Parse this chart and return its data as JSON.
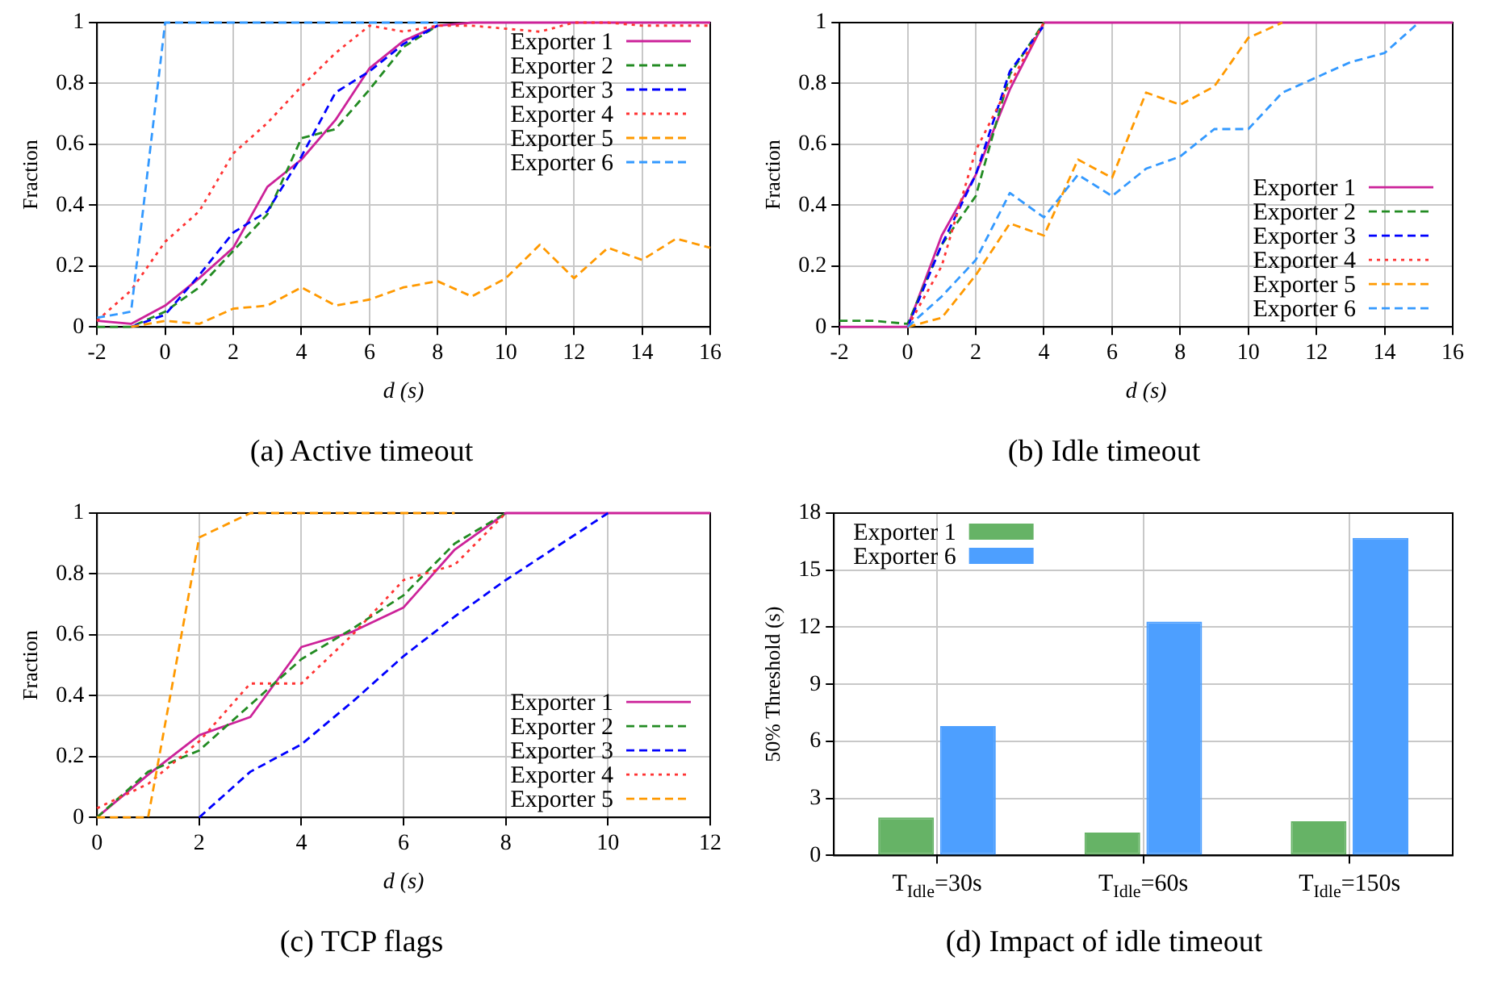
{
  "chart_data": [
    {
      "type": "line",
      "title": "(a) Active timeout",
      "xlabel": "d (s)",
      "ylabel": "Fraction",
      "x": [
        -2,
        -1,
        0,
        1,
        2,
        3,
        4,
        5,
        6,
        7,
        8,
        9,
        10,
        11,
        12,
        13,
        14,
        15,
        16
      ],
      "xlim": [
        -2,
        16
      ],
      "xticks": [
        -2,
        0,
        2,
        4,
        6,
        8,
        10,
        12,
        14,
        16
      ],
      "ylim": [
        0,
        1
      ],
      "yticks": [
        0,
        0.2,
        0.4,
        0.6,
        0.8,
        1
      ],
      "grid": true,
      "legend": "top right",
      "series": [
        {
          "name": "Exporter 1",
          "color": "#cc2299",
          "line_style": "solid",
          "values": [
            0.02,
            0.01,
            0.07,
            0.16,
            0.26,
            0.46,
            0.55,
            0.68,
            0.85,
            0.94,
            0.99,
            1,
            1,
            1,
            1,
            1,
            1,
            1,
            1
          ]
        },
        {
          "name": "Exporter 2",
          "color": "#228b22",
          "line_style": "dashed",
          "values": [
            0,
            0,
            0.05,
            0.13,
            0.25,
            0.37,
            0.62,
            0.65,
            0.78,
            0.92,
            0.99,
            null,
            null,
            null,
            null,
            null,
            null,
            null,
            null
          ]
        },
        {
          "name": "Exporter 3",
          "color": "#0000ff",
          "line_style": "dashed",
          "values": [
            null,
            0,
            0.04,
            0.17,
            0.31,
            0.38,
            0.56,
            0.77,
            0.84,
            0.93,
            0.99,
            null,
            null,
            null,
            null,
            null,
            null,
            null,
            null
          ]
        },
        {
          "name": "Exporter 4",
          "color": "#ff3333",
          "line_style": "dotted",
          "values": [
            0.02,
            0.12,
            0.28,
            0.38,
            0.57,
            0.67,
            0.79,
            0.9,
            0.99,
            0.97,
            0.99,
            0.99,
            0.98,
            0.97,
            1,
            1,
            0.99,
            0.99,
            0.99
          ]
        },
        {
          "name": "Exporter 5",
          "color": "#ff9900",
          "line_style": "dashed",
          "values": [
            null,
            0,
            0.02,
            0.01,
            0.06,
            0.07,
            0.13,
            0.07,
            0.09,
            0.13,
            0.15,
            0.1,
            0.16,
            0.27,
            0.16,
            0.26,
            0.22,
            0.29,
            0.26
          ]
        },
        {
          "name": "Exporter 6",
          "color": "#3399ff",
          "line_style": "dashed",
          "values": [
            0.03,
            0.05,
            1,
            1,
            1,
            1,
            1,
            1,
            1,
            1,
            1,
            null,
            null,
            null,
            null,
            null,
            null,
            null,
            null
          ]
        }
      ]
    },
    {
      "type": "line",
      "title": "(b) Idle timeout",
      "xlabel": "d (s)",
      "ylabel": "Fraction",
      "x": [
        -2,
        -1,
        0,
        1,
        2,
        3,
        4,
        5,
        6,
        7,
        8,
        9,
        10,
        11,
        12,
        13,
        14,
        15,
        16
      ],
      "xlim": [
        -2,
        16
      ],
      "xticks": [
        -2,
        0,
        2,
        4,
        6,
        8,
        10,
        12,
        14,
        16
      ],
      "ylim": [
        0,
        1
      ],
      "yticks": [
        0,
        0.2,
        0.4,
        0.6,
        0.8,
        1
      ],
      "grid": true,
      "legend": "bottom right",
      "series": [
        {
          "name": "Exporter 1",
          "color": "#cc2299",
          "line_style": "solid",
          "values": [
            0,
            0,
            0,
            0.3,
            0.5,
            0.78,
            1,
            1,
            1,
            1,
            1,
            1,
            1,
            1,
            1,
            1,
            1,
            1,
            1
          ]
        },
        {
          "name": "Exporter 2",
          "color": "#228b22",
          "line_style": "dashed",
          "values": [
            0.02,
            0.02,
            0.01,
            0.27,
            0.43,
            0.83,
            1,
            null,
            null,
            null,
            null,
            null,
            null,
            null,
            null,
            null,
            null,
            null,
            null
          ]
        },
        {
          "name": "Exporter 3",
          "color": "#0000ff",
          "line_style": "dashed",
          "values": [
            null,
            null,
            0,
            0.27,
            0.5,
            0.84,
            0.99,
            null,
            null,
            null,
            null,
            null,
            null,
            null,
            null,
            null,
            null,
            null,
            null
          ]
        },
        {
          "name": "Exporter 4",
          "color": "#ff3333",
          "line_style": "dotted",
          "values": [
            null,
            null,
            0,
            0.2,
            0.58,
            0.8,
            1,
            null,
            null,
            null,
            null,
            null,
            null,
            null,
            null,
            null,
            null,
            null,
            null
          ]
        },
        {
          "name": "Exporter 5",
          "color": "#ff9900",
          "line_style": "dashed",
          "values": [
            null,
            null,
            0,
            0.03,
            0.17,
            0.34,
            0.3,
            0.55,
            0.49,
            0.77,
            0.73,
            0.79,
            0.95,
            1,
            null,
            null,
            null,
            null,
            null
          ]
        },
        {
          "name": "Exporter 6",
          "color": "#3399ff",
          "line_style": "dashed",
          "values": [
            null,
            null,
            0,
            0.1,
            0.22,
            0.44,
            0.36,
            0.5,
            0.43,
            0.52,
            0.56,
            0.65,
            0.65,
            0.77,
            0.82,
            0.87,
            0.9,
            1,
            null
          ]
        }
      ]
    },
    {
      "type": "line",
      "title": "(c) TCP flags",
      "xlabel": "d (s)",
      "ylabel": "Fraction",
      "x": [
        0,
        1,
        2,
        3,
        4,
        5,
        6,
        7,
        8,
        9,
        10,
        11,
        12
      ],
      "xlim": [
        0,
        12
      ],
      "xticks": [
        0,
        2,
        4,
        6,
        8,
        10,
        12
      ],
      "ylim": [
        0,
        1
      ],
      "yticks": [
        0,
        0.2,
        0.4,
        0.6,
        0.8,
        1
      ],
      "grid": true,
      "legend": "bottom right",
      "series": [
        {
          "name": "Exporter 1",
          "color": "#cc2299",
          "line_style": "solid",
          "values": [
            0,
            0.14,
            0.27,
            0.33,
            0.56,
            0.61,
            0.69,
            0.88,
            1,
            1,
            1,
            1,
            1
          ]
        },
        {
          "name": "Exporter 2",
          "color": "#228b22",
          "line_style": "dashed",
          "values": [
            0,
            0.15,
            0.22,
            0.37,
            0.52,
            0.62,
            0.73,
            0.9,
            1,
            null,
            null,
            null,
            null
          ]
        },
        {
          "name": "Exporter 3",
          "color": "#0000ff",
          "line_style": "dashed",
          "values": [
            null,
            null,
            0,
            0.15,
            0.24,
            0.38,
            0.53,
            0.66,
            0.78,
            0.89,
            1,
            null,
            null
          ]
        },
        {
          "name": "Exporter 4",
          "color": "#ff3333",
          "line_style": "dotted",
          "values": [
            0.03,
            0.11,
            0.25,
            0.44,
            0.44,
            0.6,
            0.78,
            0.83,
            1,
            null,
            null,
            null,
            null
          ]
        },
        {
          "name": "Exporter 5",
          "color": "#ff9900",
          "line_style": "dashed",
          "values": [
            0,
            0,
            0.92,
            1,
            1,
            1,
            1,
            1,
            null,
            null,
            null,
            null,
            null
          ]
        }
      ]
    },
    {
      "type": "bar",
      "title": "(d) Impact of idle timeout",
      "ylabel": "50% Threshold (s)",
      "categories": [
        "T$_{Idle}$=30s",
        "T$_{Idle}$=60s",
        "T$_{Idle}$=150s"
      ],
      "ylim": [
        0,
        18
      ],
      "yticks": [
        0,
        3,
        6,
        9,
        12,
        15,
        18
      ],
      "grid": true,
      "legend": "top left",
      "series": [
        {
          "name": "Exporter 1",
          "color": "#66b366",
          "values": [
            2.0,
            1.2,
            1.8
          ]
        },
        {
          "name": "Exporter 6",
          "color": "#4d9fff",
          "values": [
            6.8,
            12.3,
            16.7
          ]
        }
      ]
    }
  ]
}
